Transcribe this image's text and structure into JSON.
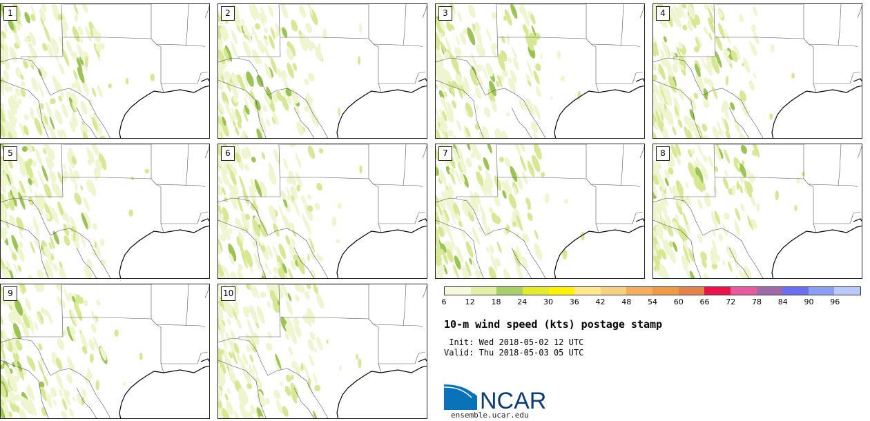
{
  "figure": {
    "title": "10-m wind speed (kts) postage stamp",
    "init_text": " Init: Wed 2018-05-02 12 UTC",
    "valid_text": "Valid: Thu 2018-05-03 05 UTC",
    "logo_text": "NCAR",
    "url": "ensemble.ucar.edu"
  },
  "panels": [
    {
      "label": "1"
    },
    {
      "label": "2"
    },
    {
      "label": "3"
    },
    {
      "label": "4"
    },
    {
      "label": "5"
    },
    {
      "label": "6"
    },
    {
      "label": "7"
    },
    {
      "label": "8"
    },
    {
      "label": "9"
    },
    {
      "label": "10"
    }
  ],
  "colorbar": {
    "ticks": [
      "6",
      "12",
      "18",
      "24",
      "30",
      "36",
      "42",
      "48",
      "54",
      "60",
      "66",
      "72",
      "78",
      "84",
      "90",
      "96"
    ],
    "colors": [
      "#f6f9dc",
      "#e2efa6",
      "#a9cf6a",
      "#e2ec2c",
      "#fff200",
      "#ffe98c",
      "#f7d182",
      "#f5ae60",
      "#ef9a48",
      "#e2844a",
      "#ec1148",
      "#e85aa0",
      "#a06aa8",
      "#6a6ef0",
      "#8a9ef4",
      "#b8c9fa"
    ]
  },
  "colors": {
    "land_wind_light": "#eef5cf",
    "land_wind_mid": "#d6e894",
    "land_wind_dark": "#9cc455"
  }
}
